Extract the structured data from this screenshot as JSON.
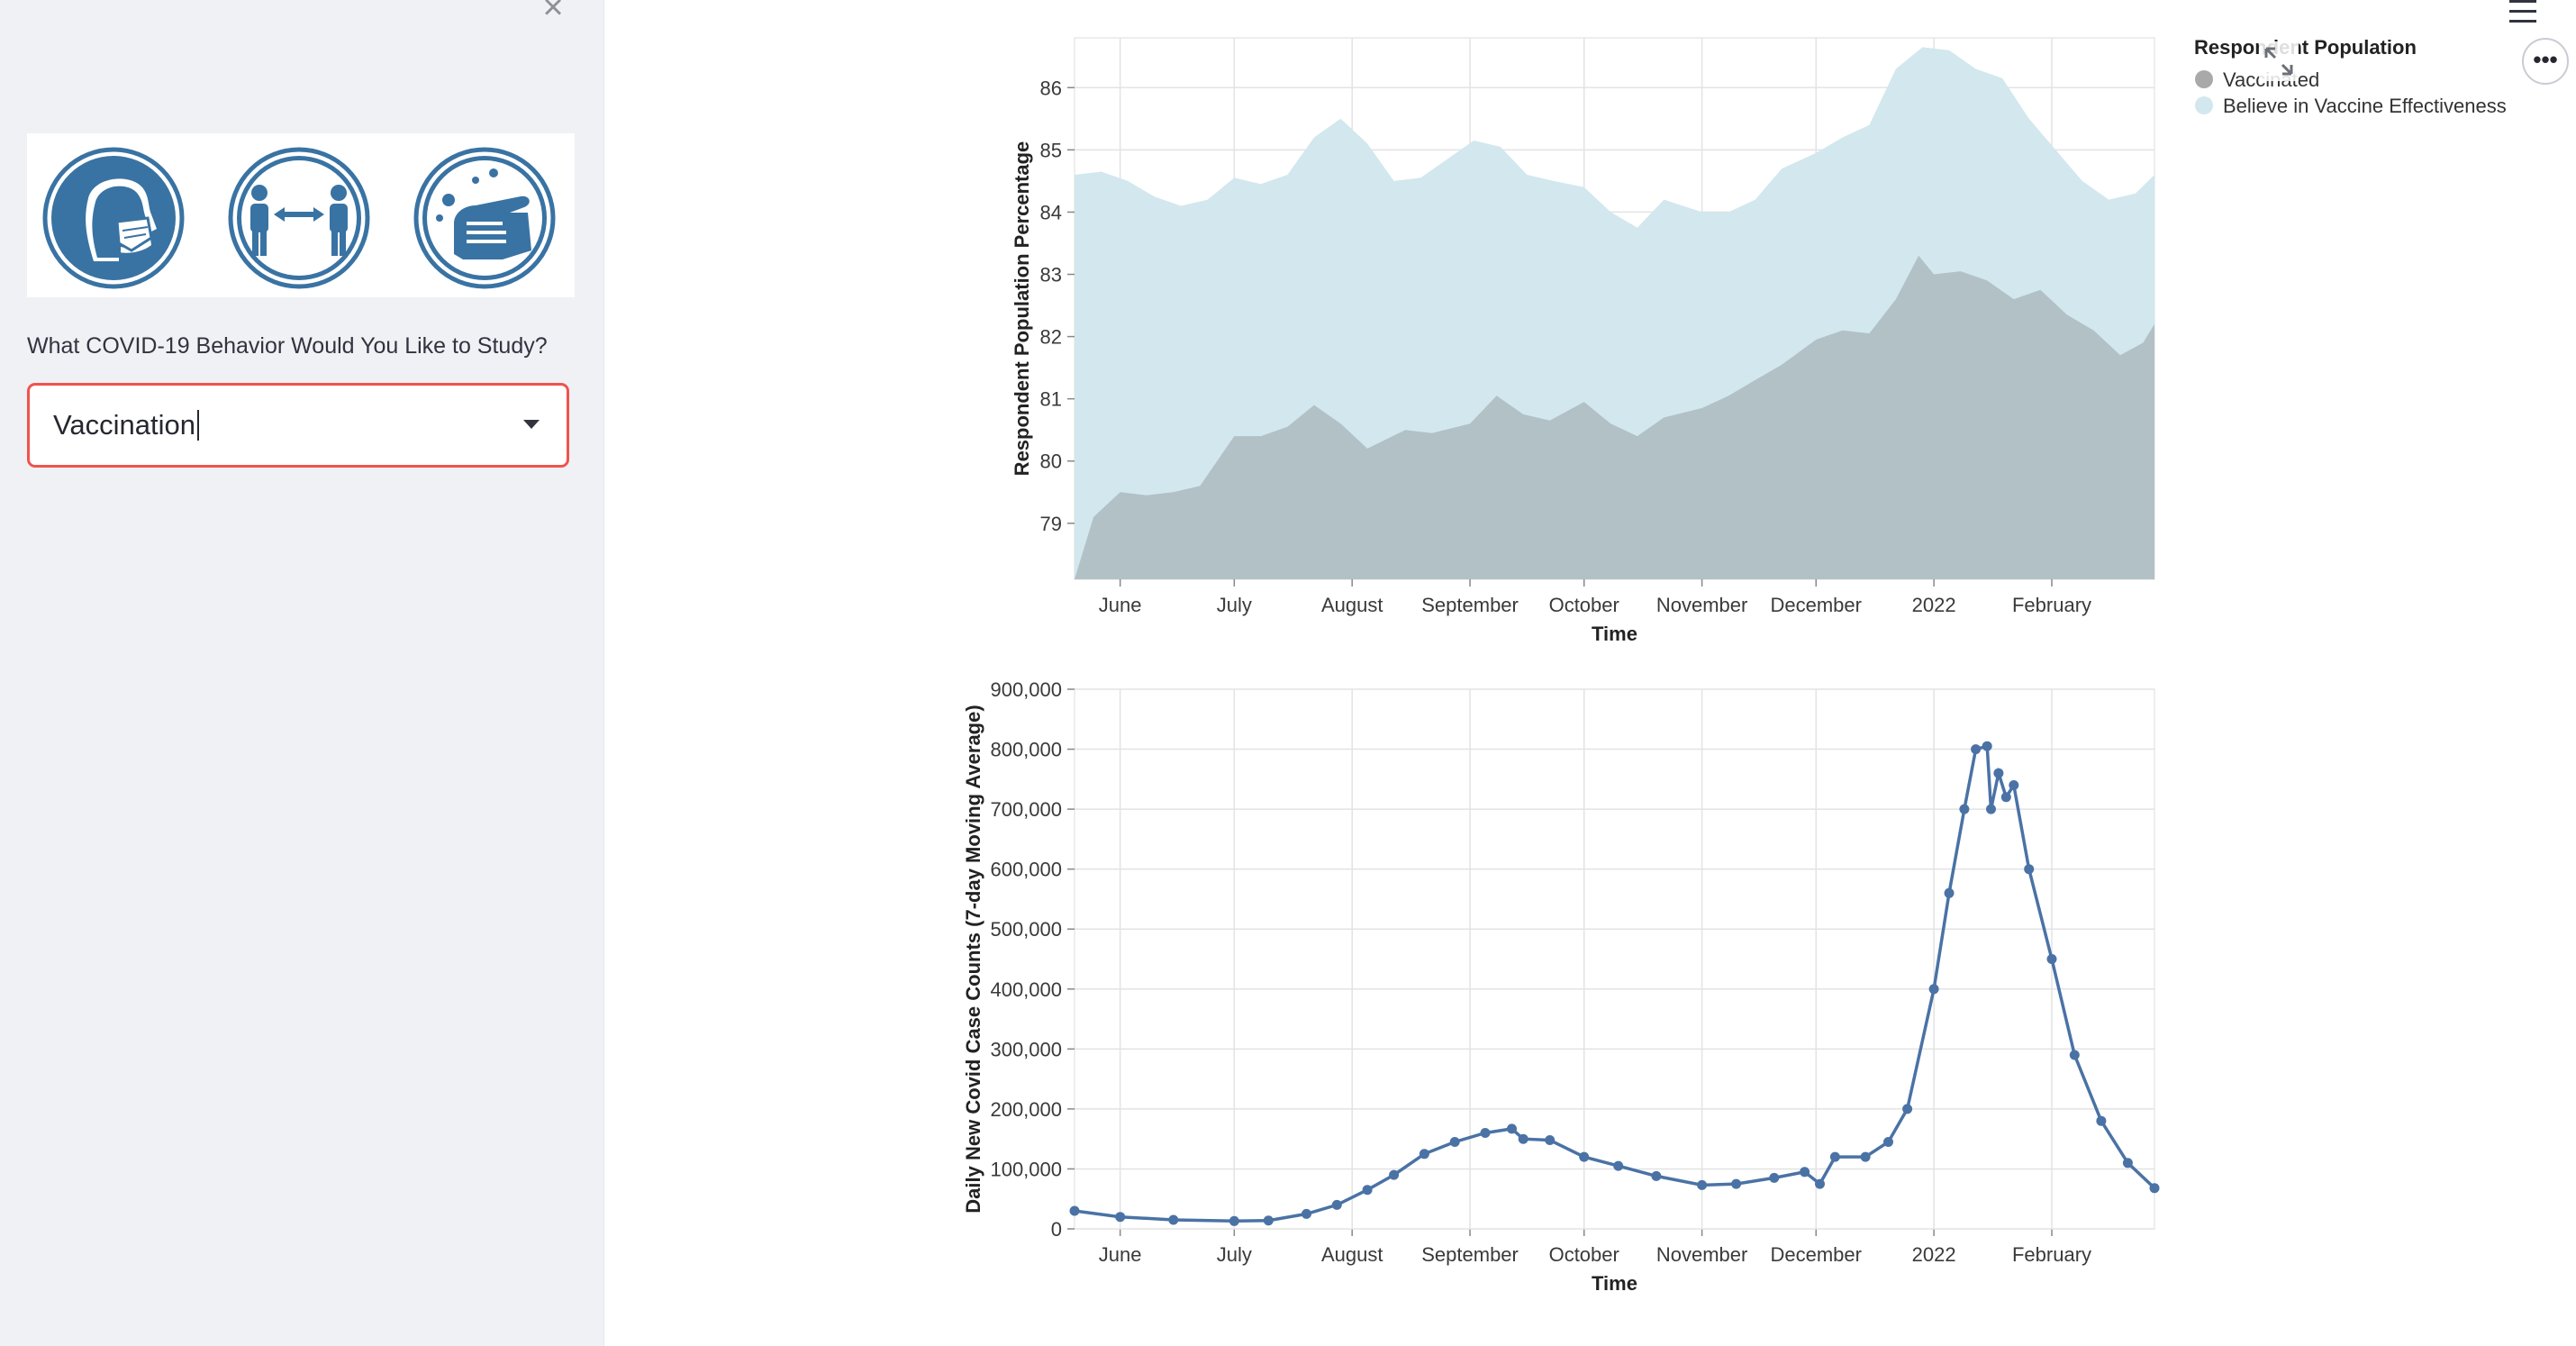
{
  "sidebar": {
    "close_label": "×",
    "question": "What COVID-19 Behavior Would You Like to Study?",
    "selected_value": "Vaccination",
    "icons": [
      "face-mask-person-icon",
      "social-distance-icon",
      "hand-washing-icon"
    ]
  },
  "header": {
    "menu_icon": "hamburger-menu-icon",
    "more_label": "•••",
    "expand_icon": "fullscreen-expand-icon"
  },
  "colors": {
    "vaccinated": "#b2c1c5",
    "believe": "#d2e7ee",
    "case_line": "#4a72a5",
    "select_border": "#f0534d"
  },
  "chart_data": [
    {
      "type": "area",
      "title": "",
      "xlabel": "Time",
      "ylabel": "Respondent Population Percentage",
      "x_ticks": [
        "June",
        "July",
        "August",
        "September",
        "October",
        "November",
        "December",
        "2022",
        "February"
      ],
      "x_range": [
        "2021-05-20",
        "2022-02-28"
      ],
      "ylim": [
        78.1,
        86.8
      ],
      "y_ticks": [
        "79",
        "80",
        "81",
        "82",
        "83",
        "84",
        "85",
        "86"
      ],
      "legend_title": "Respondent Population",
      "legend_position": "top-right",
      "grid": true,
      "series": [
        {
          "name": "Vaccinated",
          "color": "#b2c1c5",
          "points": [
            [
              "2021-05-20",
              78.1
            ],
            [
              "2021-05-25",
              79.1
            ],
            [
              "2021-06-01",
              79.5
            ],
            [
              "2021-06-08",
              79.45
            ],
            [
              "2021-06-15",
              79.5
            ],
            [
              "2021-06-22",
              79.6
            ],
            [
              "2021-07-01",
              80.4
            ],
            [
              "2021-07-08",
              80.4
            ],
            [
              "2021-07-15",
              80.55
            ],
            [
              "2021-07-22",
              80.9
            ],
            [
              "2021-07-29",
              80.6
            ],
            [
              "2021-08-05",
              80.2
            ],
            [
              "2021-08-15",
              80.5
            ],
            [
              "2021-08-22",
              80.45
            ],
            [
              "2021-09-01",
              80.6
            ],
            [
              "2021-09-08",
              81.05
            ],
            [
              "2021-09-15",
              80.75
            ],
            [
              "2021-09-22",
              80.65
            ],
            [
              "2021-10-01",
              80.95
            ],
            [
              "2021-10-08",
              80.6
            ],
            [
              "2021-10-15",
              80.4
            ],
            [
              "2021-10-22",
              80.7
            ],
            [
              "2021-11-01",
              80.85
            ],
            [
              "2021-11-08",
              81.05
            ],
            [
              "2021-11-15",
              81.3
            ],
            [
              "2021-11-22",
              81.55
            ],
            [
              "2021-12-01",
              81.95
            ],
            [
              "2021-12-08",
              82.1
            ],
            [
              "2021-12-15",
              82.05
            ],
            [
              "2021-12-22",
              82.6
            ],
            [
              "2021-12-28",
              83.3
            ],
            [
              "2022-01-01",
              83.0
            ],
            [
              "2022-01-08",
              83.05
            ],
            [
              "2022-01-15",
              82.9
            ],
            [
              "2022-01-22",
              82.6
            ],
            [
              "2022-01-29",
              82.75
            ],
            [
              "2022-02-05",
              82.35
            ],
            [
              "2022-02-12",
              82.1
            ],
            [
              "2022-02-19",
              81.7
            ],
            [
              "2022-02-25",
              81.9
            ],
            [
              "2022-02-28",
              82.2
            ]
          ]
        },
        {
          "name": "Believe in Vaccine Effectiveness",
          "color": "#d2e7ee",
          "points": [
            [
              "2021-05-20",
              84.6
            ],
            [
              "2021-05-27",
              84.65
            ],
            [
              "2021-06-03",
              84.5
            ],
            [
              "2021-06-10",
              84.25
            ],
            [
              "2021-06-17",
              84.1
            ],
            [
              "2021-06-24",
              84.2
            ],
            [
              "2021-07-01",
              84.55
            ],
            [
              "2021-07-08",
              84.45
            ],
            [
              "2021-07-15",
              84.6
            ],
            [
              "2021-07-22",
              85.2
            ],
            [
              "2021-07-29",
              85.5
            ],
            [
              "2021-08-05",
              85.1
            ],
            [
              "2021-08-12",
              84.5
            ],
            [
              "2021-08-19",
              84.55
            ],
            [
              "2021-08-26",
              84.85
            ],
            [
              "2021-09-02",
              85.15
            ],
            [
              "2021-09-09",
              85.05
            ],
            [
              "2021-09-16",
              84.6
            ],
            [
              "2021-09-23",
              84.5
            ],
            [
              "2021-10-01",
              84.4
            ],
            [
              "2021-10-08",
              84.0
            ],
            [
              "2021-10-15",
              83.75
            ],
            [
              "2021-10-22",
              84.2
            ],
            [
              "2021-11-01",
              84.0
            ],
            [
              "2021-11-08",
              84.0
            ],
            [
              "2021-11-15",
              84.2
            ],
            [
              "2021-11-22",
              84.7
            ],
            [
              "2021-12-01",
              84.95
            ],
            [
              "2021-12-08",
              85.2
            ],
            [
              "2021-12-15",
              85.4
            ],
            [
              "2021-12-22",
              86.3
            ],
            [
              "2021-12-29",
              86.65
            ],
            [
              "2022-01-05",
              86.6
            ],
            [
              "2022-01-12",
              86.3
            ],
            [
              "2022-01-19",
              86.15
            ],
            [
              "2022-01-26",
              85.5
            ],
            [
              "2022-02-02",
              85.0
            ],
            [
              "2022-02-09",
              84.5
            ],
            [
              "2022-02-16",
              84.2
            ],
            [
              "2022-02-23",
              84.3
            ],
            [
              "2022-02-28",
              84.6
            ]
          ]
        }
      ]
    },
    {
      "type": "line",
      "title": "",
      "xlabel": "Time",
      "ylabel": "Daily New Covid Case Counts (7-day Moving Average)",
      "x_ticks": [
        "June",
        "July",
        "August",
        "September",
        "October",
        "November",
        "December",
        "2022",
        "February"
      ],
      "x_range": [
        "2021-05-20",
        "2022-02-28"
      ],
      "ylim": [
        0,
        900000
      ],
      "y_ticks": [
        "0",
        "100,000",
        "200,000",
        "300,000",
        "400,000",
        "500,000",
        "600,000",
        "700,000",
        "800,000",
        "900,000"
      ],
      "grid": true,
      "series": [
        {
          "color": "#4a72a5",
          "points": [
            [
              "2021-05-20",
              30000
            ],
            [
              "2021-06-01",
              20000
            ],
            [
              "2021-06-15",
              15000
            ],
            [
              "2021-07-01",
              13000
            ],
            [
              "2021-07-10",
              14000
            ],
            [
              "2021-07-20",
              25000
            ],
            [
              "2021-07-28",
              40000
            ],
            [
              "2021-08-05",
              65000
            ],
            [
              "2021-08-12",
              90000
            ],
            [
              "2021-08-20",
              125000
            ],
            [
              "2021-08-28",
              145000
            ],
            [
              "2021-09-05",
              160000
            ],
            [
              "2021-09-12",
              167000
            ],
            [
              "2021-09-15",
              150000
            ],
            [
              "2021-09-22",
              148000
            ],
            [
              "2021-10-01",
              120000
            ],
            [
              "2021-10-10",
              105000
            ],
            [
              "2021-10-20",
              88000
            ],
            [
              "2021-11-01",
              73000
            ],
            [
              "2021-11-10",
              75000
            ],
            [
              "2021-11-20",
              85000
            ],
            [
              "2021-11-28",
              95000
            ],
            [
              "2021-12-02",
              75000
            ],
            [
              "2021-12-06",
              120000
            ],
            [
              "2021-12-14",
              120000
            ],
            [
              "2021-12-20",
              145000
            ],
            [
              "2021-12-25",
              200000
            ],
            [
              "2022-01-01",
              400000
            ],
            [
              "2022-01-05",
              560000
            ],
            [
              "2022-01-09",
              700000
            ],
            [
              "2022-01-12",
              800000
            ],
            [
              "2022-01-15",
              805000
            ],
            [
              "2022-01-16",
              700000
            ],
            [
              "2022-01-18",
              760000
            ],
            [
              "2022-01-20",
              720000
            ],
            [
              "2022-01-22",
              740000
            ],
            [
              "2022-01-26",
              600000
            ],
            [
              "2022-02-01",
              450000
            ],
            [
              "2022-02-07",
              290000
            ],
            [
              "2022-02-14",
              180000
            ],
            [
              "2022-02-21",
              110000
            ],
            [
              "2022-02-28",
              68000
            ]
          ]
        }
      ]
    }
  ]
}
